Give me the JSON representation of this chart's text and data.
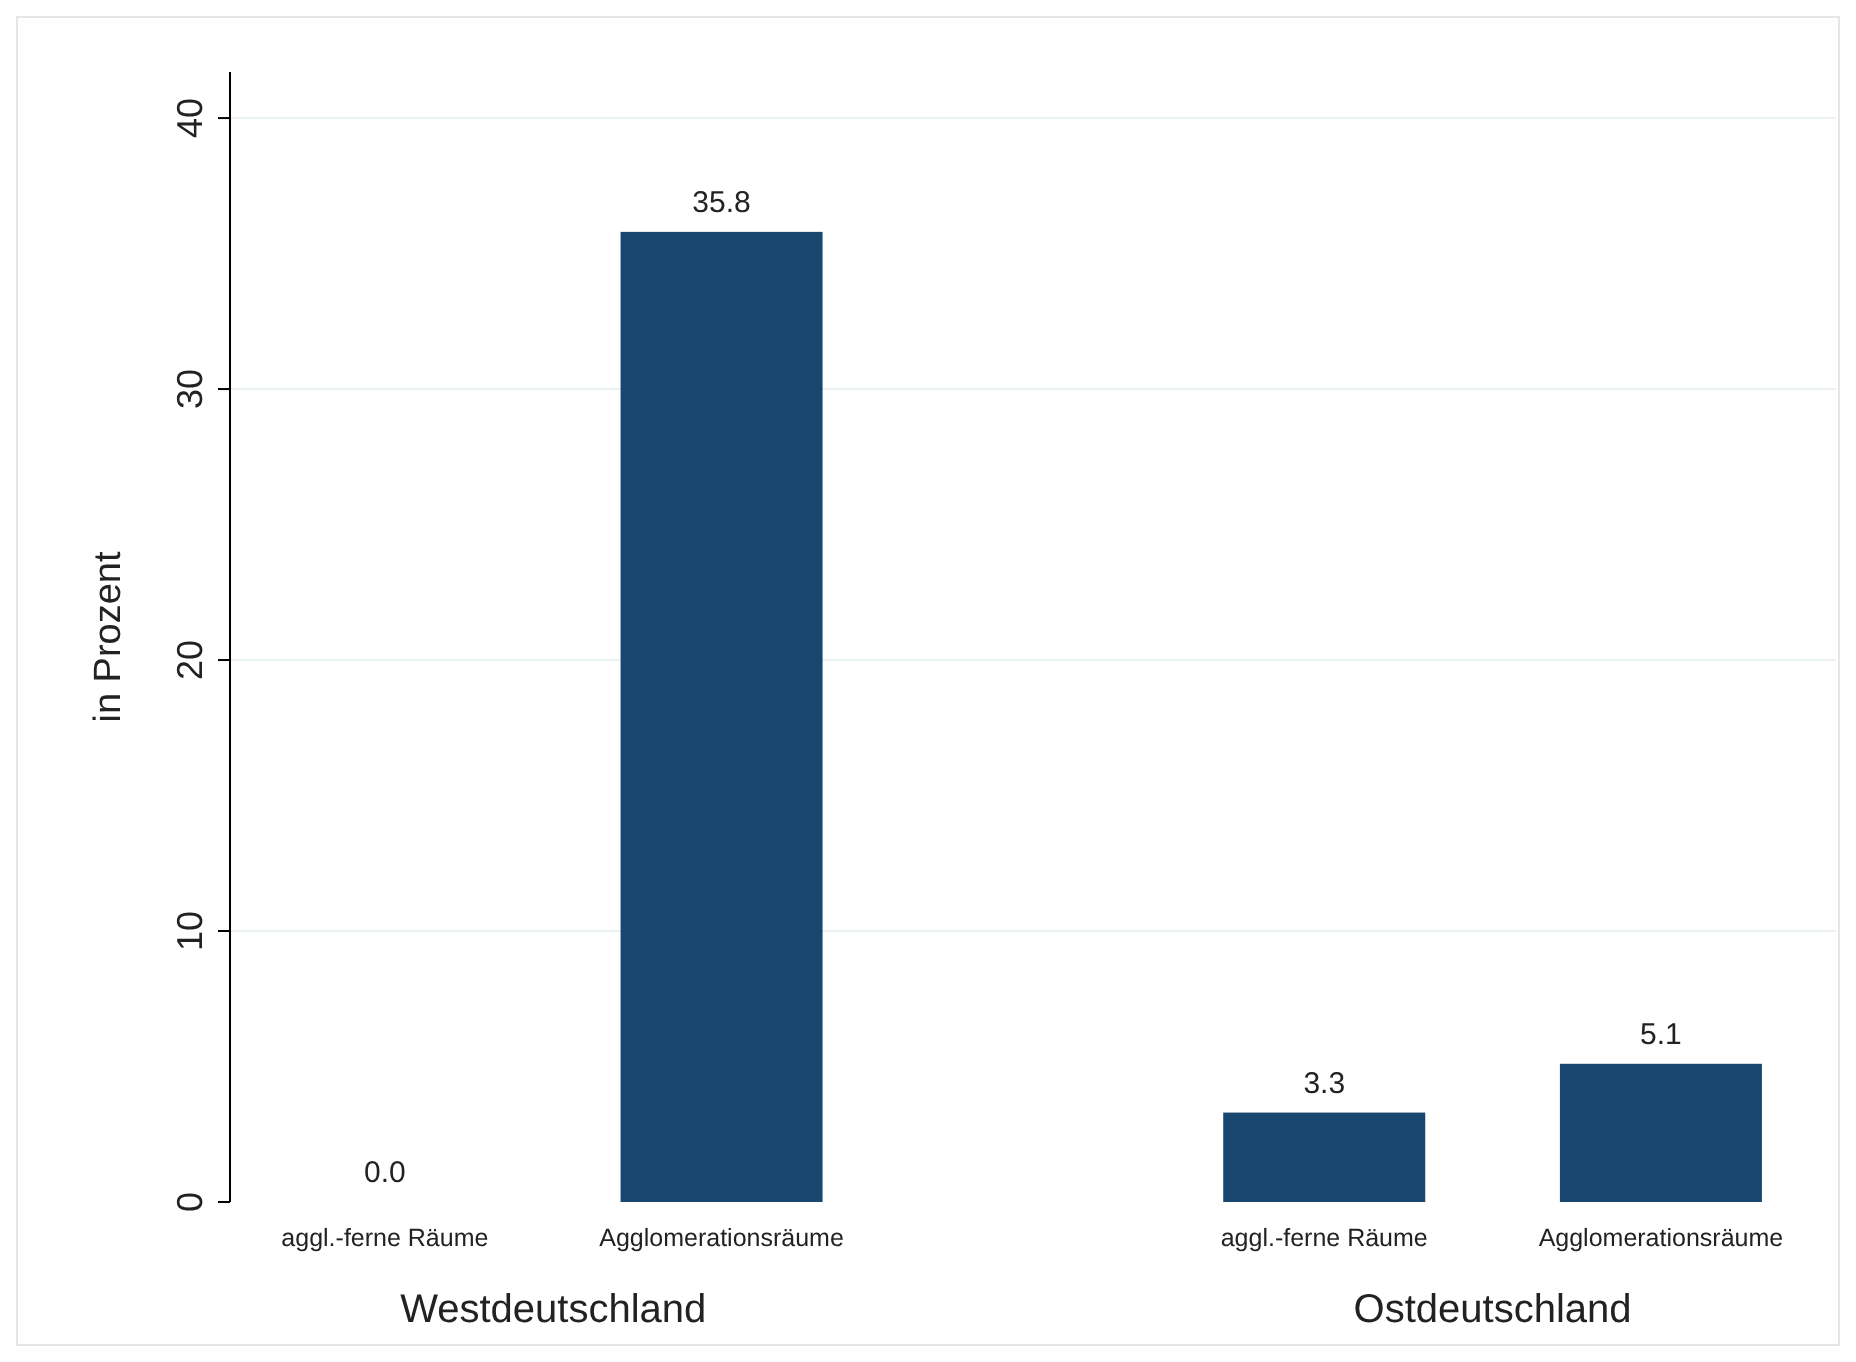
{
  "chart_data": {
    "type": "bar",
    "ylabel": "in Prozent",
    "categories": [
      "aggl.-ferne Räume",
      "Agglomerationsräume",
      "aggl.-ferne Räume",
      "Agglomerationsräume"
    ],
    "values": [
      0.0,
      35.8,
      3.3,
      5.1
    ],
    "value_labels": [
      "0.0",
      "35.8",
      "3.3",
      "5.1"
    ],
    "color": "#1a476f",
    "ylim": [
      0,
      41.7
    ],
    "yticks": [
      0,
      10,
      20,
      30,
      40
    ],
    "grid": "y",
    "annotations": [
      "Westdeutschland",
      "Ostdeutschland"
    ]
  }
}
